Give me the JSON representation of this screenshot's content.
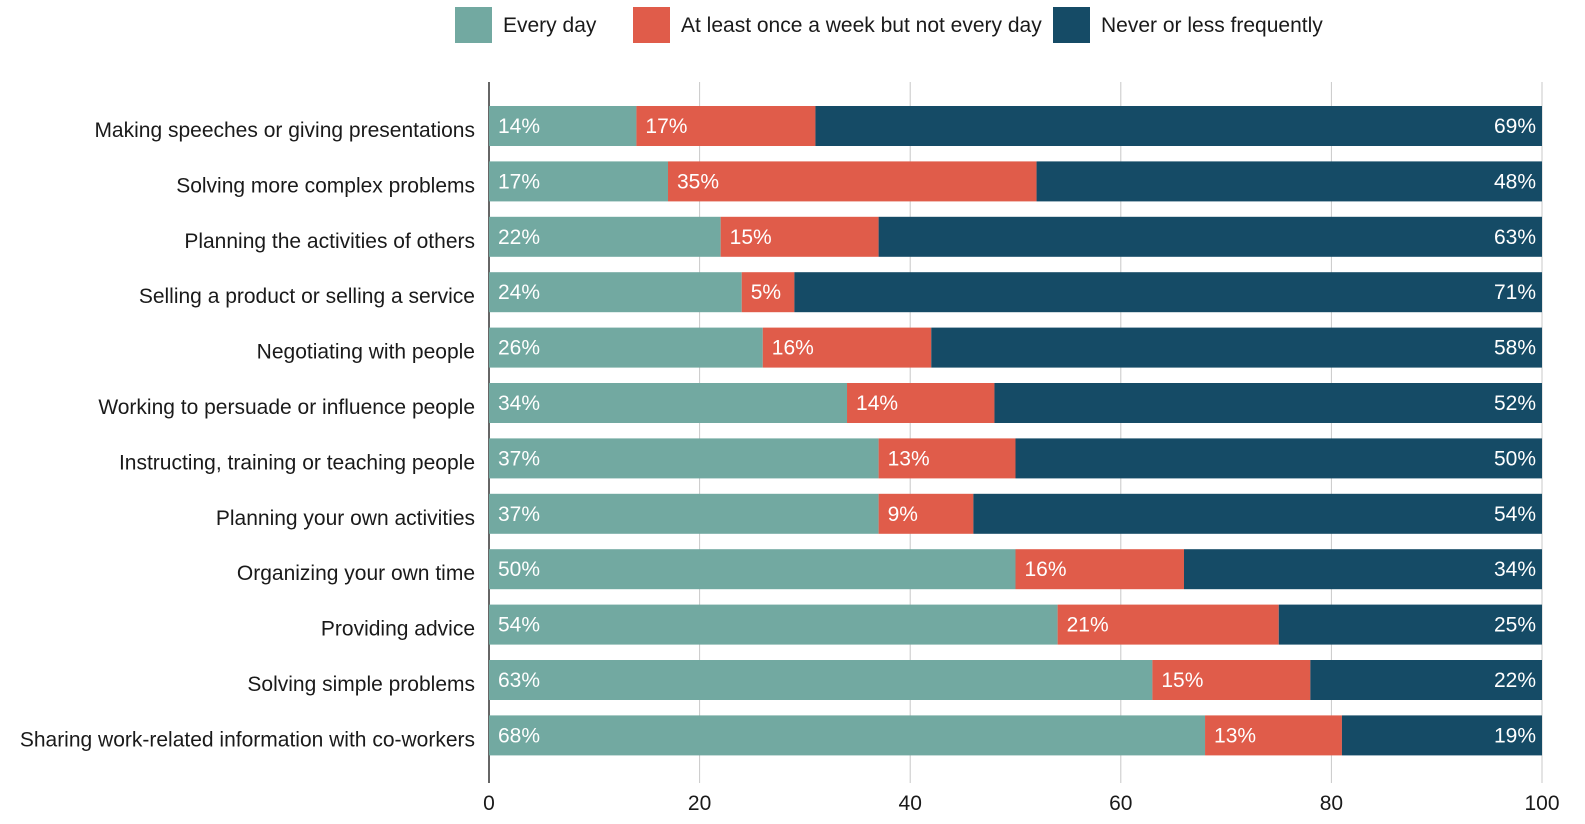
{
  "chart_data": {
    "type": "bar",
    "orientation": "horizontal",
    "stacked": true,
    "title": "",
    "xlabel": "",
    "ylabel": "",
    "xlim": [
      0,
      100
    ],
    "x_ticks": [
      "0",
      "20",
      "40",
      "60",
      "80",
      "100"
    ],
    "grid": true,
    "legend_position": "top",
    "categories": [
      "Making speeches or giving presentations",
      "Solving more complex problems",
      "Planning the activities of others",
      "Selling a product or selling a service",
      "Negotiating with people",
      "Working to persuade or influence people",
      "Instructing, training or teaching people",
      "Planning your own activities",
      "Organizing your own time",
      "Providing advice",
      "Solving simple problems",
      "Sharing work-related information with co-workers"
    ],
    "series": [
      {
        "name": "Every day",
        "color": "#72a9a1",
        "values": [
          14,
          17,
          22,
          24,
          26,
          34,
          37,
          37,
          50,
          54,
          63,
          68
        ],
        "labels": [
          "14%",
          "17%",
          "22%",
          "24%",
          "26%",
          "34%",
          "37%",
          "37%",
          "50%",
          "54%",
          "63%",
          "68%"
        ]
      },
      {
        "name": "At least once a week but not every day",
        "color": "#e05c4a",
        "values": [
          17,
          35,
          15,
          5,
          16,
          14,
          13,
          9,
          16,
          21,
          15,
          13
        ],
        "labels": [
          "17%",
          "35%",
          "15%",
          "5%",
          "16%",
          "14%",
          "13%",
          "9%",
          "16%",
          "21%",
          "15%",
          "13%"
        ]
      },
      {
        "name": "Never or less frequently",
        "color": "#154b66",
        "values": [
          69,
          48,
          63,
          71,
          58,
          52,
          50,
          54,
          34,
          25,
          22,
          19
        ],
        "labels": [
          "69%",
          "48%",
          "63%",
          "71%",
          "58%",
          "52%",
          "50%",
          "54%",
          "34%",
          "25%",
          "22%",
          "19%"
        ]
      }
    ]
  },
  "legend": {
    "items": [
      {
        "label": "Every day",
        "color": "#72a9a1"
      },
      {
        "label": "At least once a week but not every day",
        "color": "#e05c4a"
      },
      {
        "label": "Never or less frequently",
        "color": "#154b66"
      }
    ]
  },
  "colors": {
    "grid": "#c8c8c8",
    "axis": "#333333",
    "text": "#1a1a1a",
    "data_label": "#ffffff"
  }
}
